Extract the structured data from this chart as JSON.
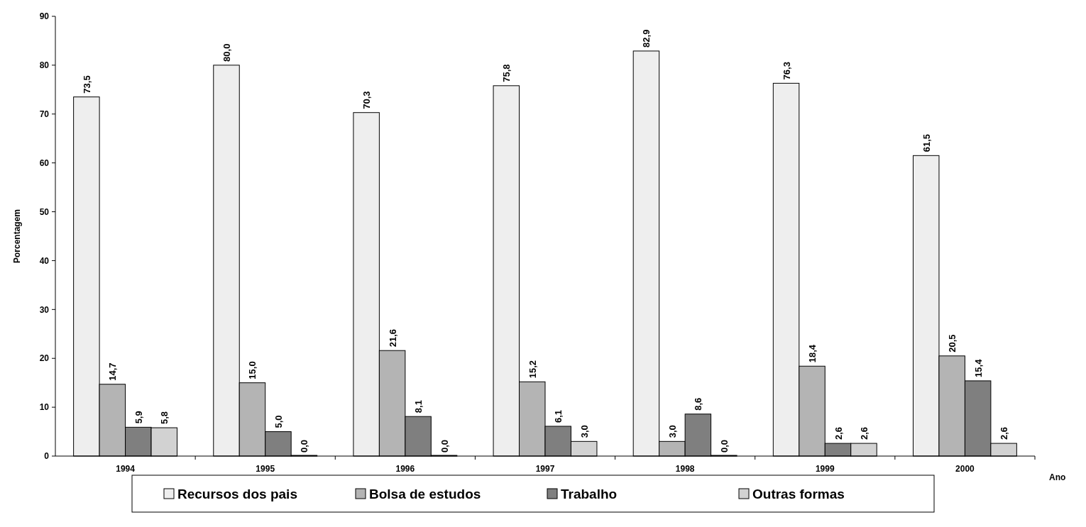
{
  "chart_data": {
    "type": "bar",
    "xlabel": "Ano",
    "ylabel": "Porcentagem",
    "categories": [
      "1994",
      "1995",
      "1996",
      "1997",
      "1998",
      "1999",
      "2000"
    ],
    "series": [
      {
        "name": "Recursos dos pais",
        "color": "#eeeeee",
        "values": [
          73.5,
          80.0,
          70.3,
          75.8,
          82.9,
          76.3,
          61.5
        ],
        "value_labels": [
          "73,5",
          "80,0",
          "70,3",
          "75,8",
          "82,9",
          "76,3",
          "61,5"
        ]
      },
      {
        "name": "Bolsa de estudos",
        "color": "#b4b4b4",
        "values": [
          14.7,
          15.0,
          21.6,
          15.2,
          3.0,
          18.4,
          20.5
        ],
        "value_labels": [
          "14,7",
          "15,0",
          "21,6",
          "15,2",
          "3,0",
          "18,4",
          "20,5"
        ]
      },
      {
        "name": "Trabalho",
        "color": "#7f7f7f",
        "values": [
          5.9,
          5.0,
          8.1,
          6.1,
          8.6,
          2.6,
          15.4
        ],
        "value_labels": [
          "5,9",
          "5,0",
          "8,1",
          "6,1",
          "8,6",
          "2,6",
          "15,4"
        ]
      },
      {
        "name": "Outras formas",
        "color": "#d2d2d2",
        "values": [
          5.8,
          0.0,
          0.0,
          3.0,
          0.0,
          2.6,
          2.6
        ],
        "value_labels": [
          "5,8",
          "0,0",
          "0,0",
          "3,0",
          "0,0",
          "2,6",
          "2,6"
        ]
      }
    ],
    "ylim": [
      0,
      90
    ],
    "yticks": [
      0,
      10,
      20,
      30,
      40,
      50,
      60,
      70,
      80,
      90
    ],
    "legend": "bottom"
  }
}
